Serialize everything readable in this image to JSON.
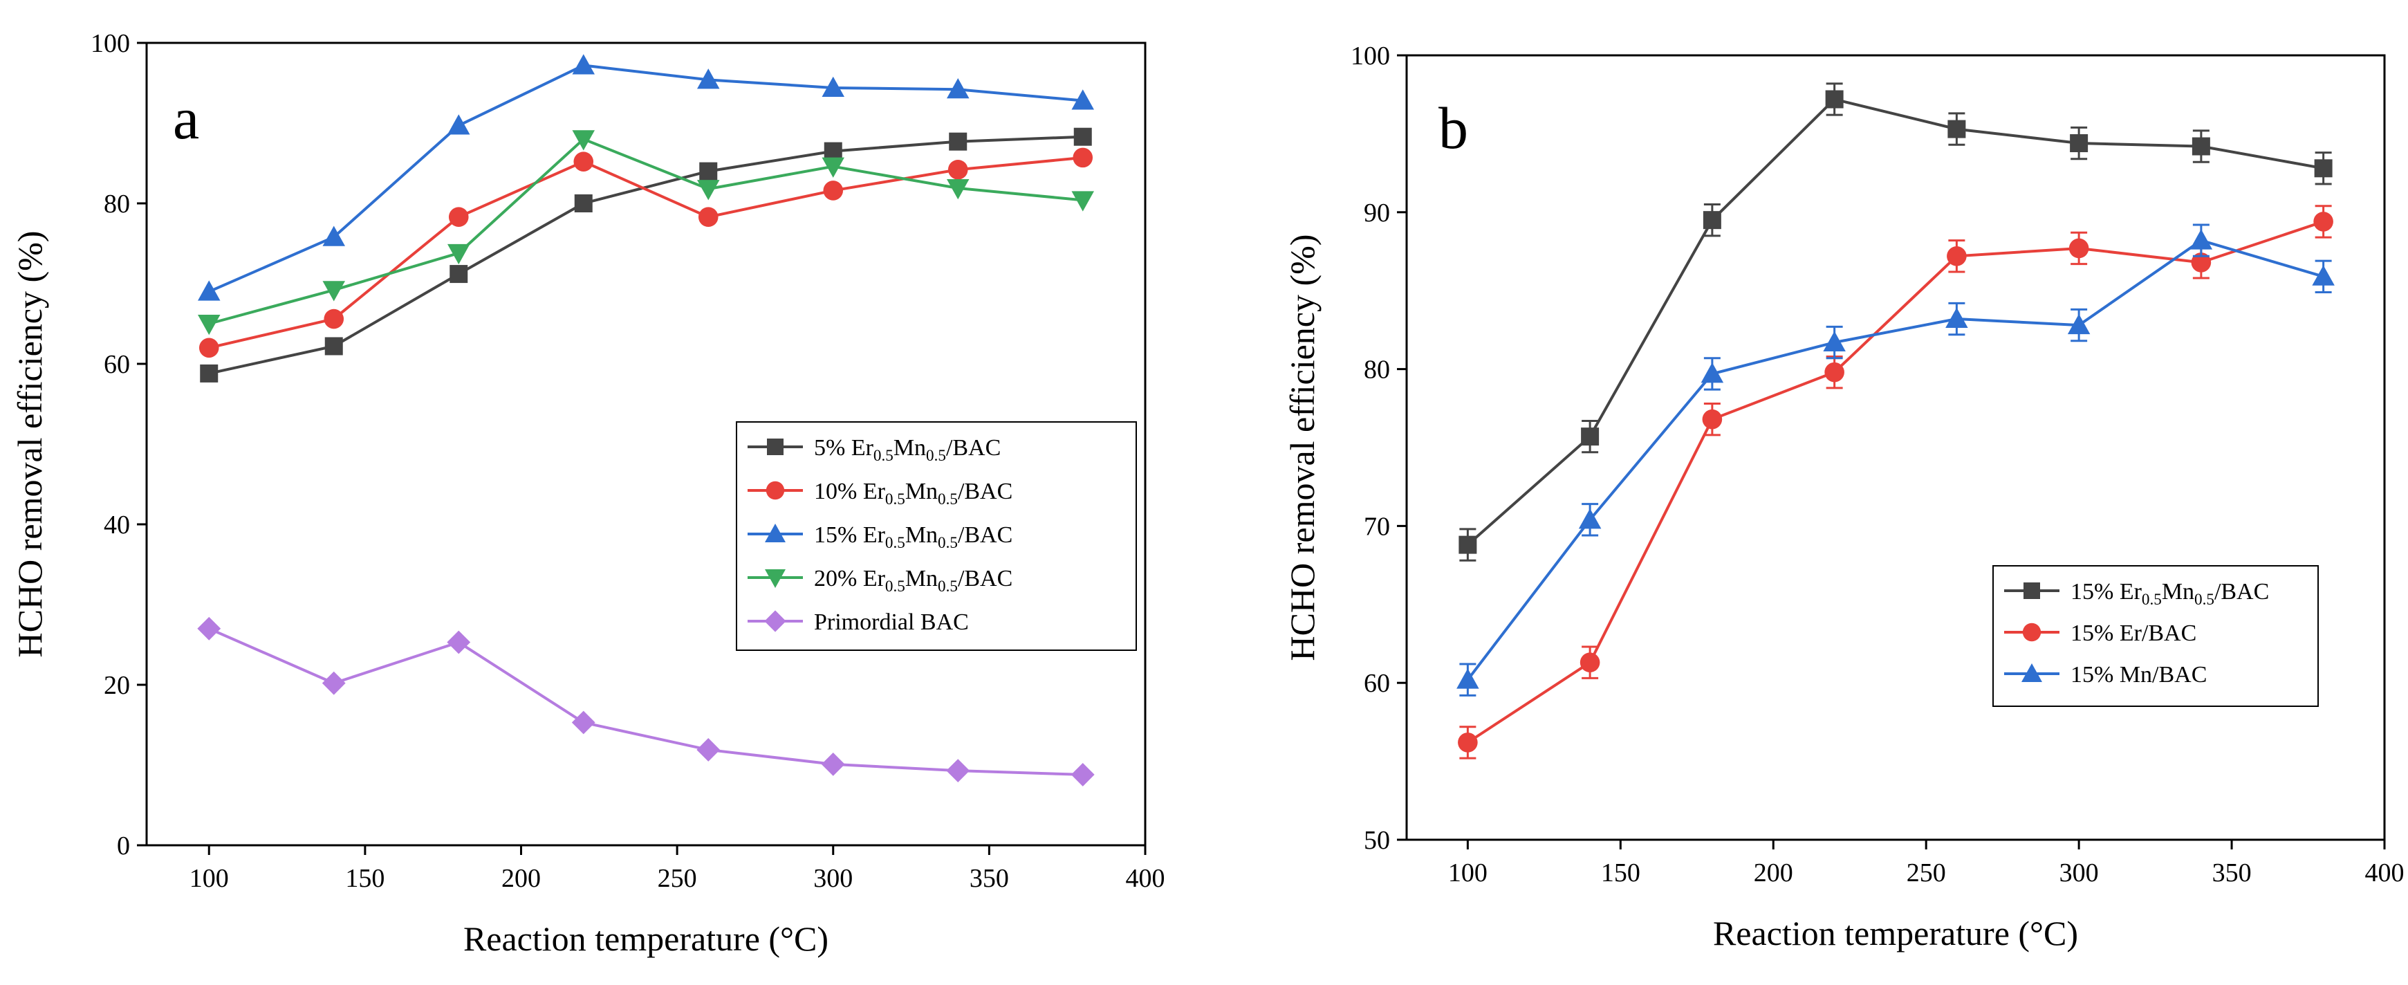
{
  "chart_data": [
    {
      "type": "line",
      "panel_label": "a",
      "xlabel": "Reaction temperature (°C)",
      "ylabel": "HCHO removal efficiency (%)",
      "xlim": [
        80,
        400
      ],
      "ylim": [
        0,
        100
      ],
      "xticks": [
        100,
        150,
        200,
        250,
        300,
        350,
        400
      ],
      "yticks": [
        0,
        20,
        40,
        60,
        80,
        100
      ],
      "x": [
        100,
        140,
        180,
        220,
        260,
        300,
        340,
        380
      ],
      "legend_position": "center-right",
      "series": [
        {
          "name": "5% Er0.5Mn0.5/BAC",
          "label_parts": [
            "5% Er",
            "0.5",
            "Mn",
            "0.5",
            "/BAC"
          ],
          "color": "#444444",
          "marker": "square",
          "values": [
            58.8,
            62.2,
            71.2,
            80.0,
            84.0,
            86.5,
            87.7,
            88.3
          ]
        },
        {
          "name": "10% Er0.5Mn0.5/BAC",
          "label_parts": [
            "10% Er",
            "0.5",
            "Mn",
            "0.5",
            "/BAC"
          ],
          "color": "#e8403a",
          "marker": "circle",
          "values": [
            62.0,
            65.6,
            78.3,
            85.2,
            78.3,
            81.6,
            84.2,
            85.7
          ]
        },
        {
          "name": "15% Er0.5Mn0.5/BAC",
          "label_parts": [
            "15% Er",
            "0.5",
            "Mn",
            "0.5",
            "/BAC"
          ],
          "color": "#2e6fd0",
          "marker": "triangle-up",
          "values": [
            69.0,
            75.8,
            89.7,
            97.2,
            95.4,
            94.4,
            94.2,
            92.8
          ]
        },
        {
          "name": "20% Er0.5Mn0.5/BAC",
          "label_parts": [
            "20% Er",
            "0.5",
            "Mn",
            "0.5",
            "/BAC"
          ],
          "color": "#3aaa5c",
          "marker": "triangle-down",
          "values": [
            65.0,
            69.2,
            73.8,
            88.0,
            81.8,
            84.6,
            81.9,
            80.4
          ]
        },
        {
          "name": "Primordial BAC",
          "label_parts": [
            "Primordial BAC"
          ],
          "color": "#b57ce0",
          "marker": "diamond",
          "values": [
            27.0,
            20.2,
            25.3,
            15.3,
            11.9,
            10.1,
            9.3,
            8.8
          ]
        }
      ]
    },
    {
      "type": "line",
      "panel_label": "b",
      "xlabel": "Reaction temperature (°C)",
      "ylabel": "HCHO removal efficiency (%)",
      "xlim": [
        80,
        400
      ],
      "ylim": [
        50,
        100
      ],
      "xticks": [
        100,
        150,
        200,
        250,
        300,
        350,
        400
      ],
      "yticks": [
        50,
        60,
        70,
        80,
        90,
        100
      ],
      "x": [
        100,
        140,
        180,
        220,
        260,
        300,
        340,
        380
      ],
      "legend_position": "center-right",
      "error_bars": true,
      "series": [
        {
          "name": "15% Er0.5Mn0.5/BAC",
          "label_parts": [
            "15% Er",
            "0.5",
            "Mn",
            "0.5",
            "/BAC"
          ],
          "color": "#444444",
          "marker": "square",
          "values": [
            68.8,
            75.7,
            89.5,
            97.2,
            95.3,
            94.4,
            94.2,
            92.8
          ],
          "errors": [
            1.0,
            1.0,
            1.0,
            1.0,
            1.0,
            1.0,
            1.0,
            1.0
          ]
        },
        {
          "name": "15% Er/BAC",
          "label_parts": [
            "15% Er/BAC"
          ],
          "color": "#e8403a",
          "marker": "circle",
          "values": [
            56.2,
            61.3,
            76.8,
            79.8,
            87.2,
            87.7,
            86.8,
            89.4
          ],
          "errors": [
            1.0,
            1.0,
            1.0,
            1.0,
            1.0,
            1.0,
            1.0,
            1.0
          ]
        },
        {
          "name": "15% Mn/BAC",
          "label_parts": [
            "15% Mn/BAC"
          ],
          "color": "#2e6fd0",
          "marker": "triangle-up",
          "values": [
            60.2,
            70.4,
            79.7,
            81.7,
            83.2,
            82.8,
            88.2,
            85.9
          ],
          "errors": [
            1.0,
            1.0,
            1.0,
            1.0,
            1.0,
            1.0,
            1.0,
            1.0
          ]
        }
      ]
    }
  ]
}
